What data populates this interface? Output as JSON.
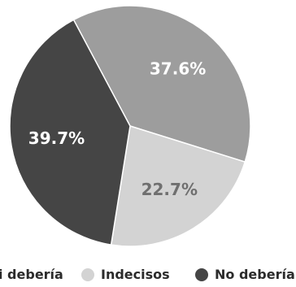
{
  "chart_data": {
    "type": "pie",
    "title": "",
    "start_angle_deg": -118,
    "direction": "clockwise",
    "slices": [
      {
        "key": "si",
        "label": "Sí debería",
        "legend_text": "i debería",
        "value": 37.6,
        "display": "37.6%",
        "color": "#9d9d9d",
        "label_color": "#ffffff"
      },
      {
        "key": "indecisos",
        "label": "Indecisos",
        "legend_text": "Indecisos",
        "value": 22.7,
        "display": "22.7%",
        "color": "#d3d3d3",
        "label_color": "#6f6f6f"
      },
      {
        "key": "no",
        "label": "No debería",
        "legend_text": "No debería",
        "value": 39.7,
        "display": "39.7%",
        "color": "#454545",
        "label_color": "#ffffff"
      }
    ],
    "legend": {
      "position": "bottom"
    }
  }
}
